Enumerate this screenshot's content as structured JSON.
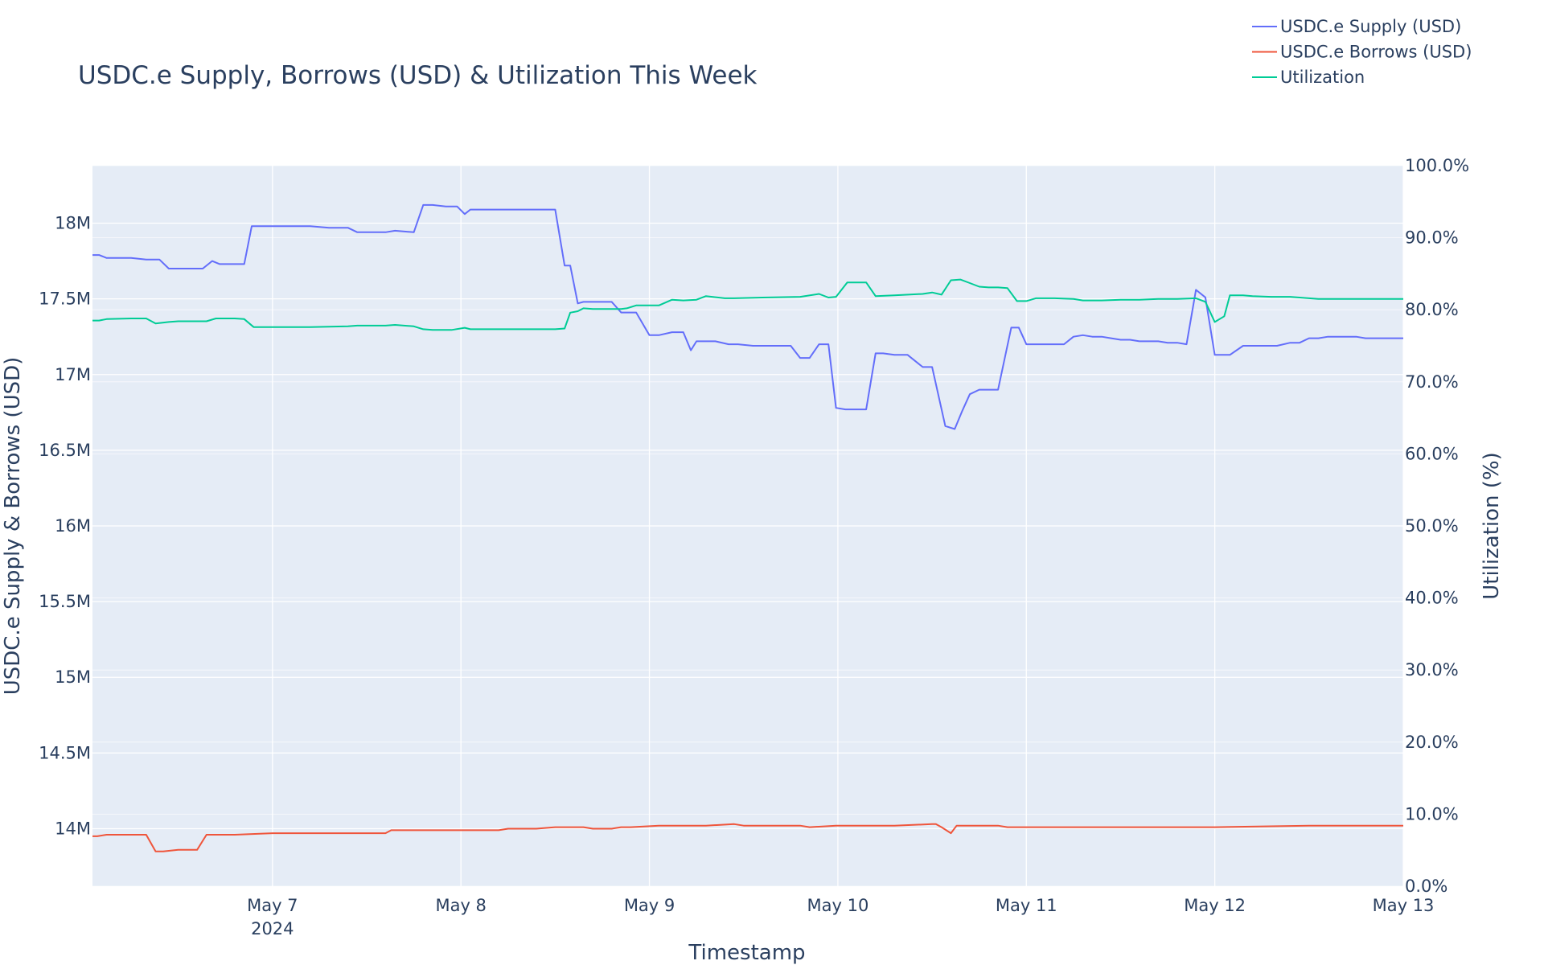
{
  "chart_data": {
    "type": "line",
    "title": "USDC.e Supply, Borrows (USD) & Utilization This Week",
    "xlabel": "Timestamp",
    "ylabel": "USDC.e Supply & Borrows (USD)",
    "y2label": "Utilization (%)",
    "x_tick_labels": [
      "May 7",
      "May 8",
      "May 9",
      "May 10",
      "May 11",
      "May 12",
      "May 13"
    ],
    "x_year_label": "2024",
    "xlim": [
      6.045,
      13.0
    ],
    "ylim": [
      13.62,
      18.38
    ],
    "y_tick_values": [
      14,
      14.5,
      15,
      15.5,
      16,
      16.5,
      17,
      17.5,
      18
    ],
    "y_tick_labels": [
      "14M",
      "14.5M",
      "15M",
      "15.5M",
      "16M",
      "16.5M",
      "17M",
      "17.5M",
      "18M"
    ],
    "y_unit": "millions USD",
    "y2lim": [
      0,
      100
    ],
    "y2_tick_values": [
      0,
      10,
      20,
      30,
      40,
      50,
      60,
      70,
      80,
      90,
      100
    ],
    "y2_tick_labels": [
      "0.0%",
      "10.0%",
      "20.0%",
      "30.0%",
      "40.0%",
      "50.0%",
      "60.0%",
      "70.0%",
      "80.0%",
      "90.0%",
      "100.0%"
    ],
    "x_unit": "day of May 2024",
    "grid": true,
    "legend_position": "top-right",
    "plot_bg": "#e5ecf6",
    "series": [
      {
        "name": "USDC.e Supply (USD)",
        "axis": "left",
        "color": "#636efa",
        "x": [
          6.045,
          6.08,
          6.12,
          6.25,
          6.33,
          6.4,
          6.45,
          6.55,
          6.63,
          6.68,
          6.72,
          6.85,
          6.89,
          6.93,
          7.1,
          7.2,
          7.3,
          7.4,
          7.45,
          7.55,
          7.6,
          7.65,
          7.75,
          7.8,
          7.85,
          7.92,
          7.98,
          8.02,
          8.05,
          8.1,
          8.2,
          8.3,
          8.4,
          8.5,
          8.55,
          8.58,
          8.62,
          8.65,
          8.7,
          8.74,
          8.8,
          8.85,
          8.88,
          8.93,
          9.0,
          9.05,
          9.12,
          9.18,
          9.22,
          9.25,
          9.3,
          9.35,
          9.42,
          9.47,
          9.55,
          9.65,
          9.75,
          9.8,
          9.85,
          9.9,
          9.95,
          9.99,
          10.04,
          10.08,
          10.15,
          10.2,
          10.24,
          10.3,
          10.37,
          10.45,
          10.5,
          10.57,
          10.62,
          10.66,
          10.7,
          10.75,
          10.8,
          10.85,
          10.92,
          10.96,
          11.0,
          11.05,
          11.12,
          11.2,
          11.25,
          11.3,
          11.35,
          11.4,
          11.45,
          11.5,
          11.55,
          11.6,
          11.65,
          11.7,
          11.75,
          11.8,
          11.85,
          11.9,
          11.95,
          12.0,
          12.04,
          12.08,
          12.15,
          12.2,
          12.27,
          12.33,
          12.4,
          12.45,
          12.5,
          12.55,
          12.6,
          12.65,
          12.75,
          12.8,
          12.85,
          12.9,
          13.0
        ],
        "y": [
          17.79,
          17.79,
          17.77,
          17.77,
          17.76,
          17.76,
          17.7,
          17.7,
          17.7,
          17.75,
          17.73,
          17.73,
          17.98,
          17.98,
          17.98,
          17.98,
          17.97,
          17.97,
          17.94,
          17.94,
          17.94,
          17.95,
          17.94,
          18.12,
          18.12,
          18.11,
          18.11,
          18.06,
          18.09,
          18.09,
          18.09,
          18.09,
          18.09,
          18.09,
          17.72,
          17.72,
          17.47,
          17.48,
          17.48,
          17.48,
          17.48,
          17.41,
          17.41,
          17.41,
          17.26,
          17.26,
          17.28,
          17.28,
          17.16,
          17.22,
          17.22,
          17.22,
          17.2,
          17.2,
          17.19,
          17.19,
          17.19,
          17.11,
          17.11,
          17.2,
          17.2,
          16.78,
          16.77,
          16.77,
          16.77,
          17.14,
          17.14,
          17.13,
          17.13,
          17.05,
          17.05,
          16.66,
          16.64,
          16.76,
          16.87,
          16.9,
          16.9,
          16.9,
          17.31,
          17.31,
          17.2,
          17.2,
          17.2,
          17.2,
          17.25,
          17.26,
          17.25,
          17.25,
          17.24,
          17.23,
          17.23,
          17.22,
          17.22,
          17.22,
          17.21,
          17.21,
          17.2,
          17.56,
          17.51,
          17.13,
          17.13,
          17.13,
          17.19,
          17.19,
          17.19,
          17.19,
          17.21,
          17.21,
          17.24,
          17.24,
          17.25,
          17.25,
          17.25,
          17.24,
          17.24,
          17.24,
          17.24
        ]
      },
      {
        "name": "USDC.e Borrows (USD)",
        "axis": "left",
        "color": "#ef553b",
        "x": [
          6.045,
          6.07,
          6.12,
          6.2,
          6.3,
          6.33,
          6.38,
          6.42,
          6.5,
          6.6,
          6.65,
          6.7,
          6.8,
          7.0,
          7.2,
          7.4,
          7.6,
          7.63,
          7.8,
          8.0,
          8.2,
          8.25,
          8.4,
          8.5,
          8.6,
          8.65,
          8.7,
          8.8,
          8.85,
          8.9,
          9.05,
          9.3,
          9.45,
          9.5,
          9.6,
          9.8,
          9.85,
          9.99,
          10.0,
          10.3,
          10.5,
          10.52,
          10.55,
          10.6,
          10.63,
          10.68,
          10.75,
          10.85,
          10.9,
          11.0,
          11.3,
          11.8,
          12.0,
          12.5,
          12.7,
          12.9,
          13.0
        ],
        "y": [
          13.95,
          13.95,
          13.96,
          13.96,
          13.96,
          13.96,
          13.85,
          13.85,
          13.86,
          13.86,
          13.96,
          13.96,
          13.96,
          13.97,
          13.97,
          13.97,
          13.97,
          13.99,
          13.99,
          13.99,
          13.99,
          14.0,
          14.0,
          14.01,
          14.01,
          14.01,
          14.0,
          14.0,
          14.01,
          14.01,
          14.02,
          14.02,
          14.03,
          14.02,
          14.02,
          14.02,
          14.01,
          14.02,
          14.02,
          14.02,
          14.03,
          14.03,
          14.01,
          13.97,
          14.02,
          14.02,
          14.02,
          14.02,
          14.01,
          14.01,
          14.01,
          14.01,
          14.01,
          14.02,
          14.02,
          14.02,
          14.02
        ]
      },
      {
        "name": "Utilization",
        "axis": "right",
        "color": "#00cc96",
        "x": [
          6.045,
          6.08,
          6.12,
          6.25,
          6.33,
          6.38,
          6.45,
          6.5,
          6.6,
          6.65,
          6.7,
          6.8,
          6.85,
          6.9,
          7.0,
          7.2,
          7.4,
          7.45,
          7.6,
          7.65,
          7.75,
          7.8,
          7.85,
          7.95,
          8.02,
          8.05,
          8.1,
          8.3,
          8.5,
          8.55,
          8.58,
          8.62,
          8.65,
          8.7,
          8.8,
          8.85,
          8.88,
          8.93,
          9.0,
          9.05,
          9.12,
          9.18,
          9.25,
          9.3,
          9.4,
          9.45,
          9.6,
          9.8,
          9.9,
          9.95,
          9.99,
          10.05,
          10.15,
          10.2,
          10.3,
          10.45,
          10.5,
          10.55,
          10.6,
          10.65,
          10.7,
          10.75,
          10.8,
          10.85,
          10.9,
          10.95,
          11.0,
          11.05,
          11.15,
          11.25,
          11.3,
          11.4,
          11.5,
          11.6,
          11.7,
          11.8,
          11.9,
          11.95,
          12.0,
          12.05,
          12.08,
          12.15,
          12.2,
          12.3,
          12.4,
          12.5,
          12.55,
          12.6,
          12.7,
          12.8,
          12.9,
          13.0
        ],
        "y": [
          78.5,
          78.5,
          78.7,
          78.8,
          78.8,
          78.1,
          78.3,
          78.4,
          78.4,
          78.4,
          78.8,
          78.8,
          78.7,
          77.6,
          77.6,
          77.6,
          77.7,
          77.8,
          77.8,
          77.9,
          77.7,
          77.3,
          77.2,
          77.2,
          77.5,
          77.3,
          77.3,
          77.3,
          77.3,
          77.4,
          79.6,
          79.8,
          80.2,
          80.1,
          80.1,
          80.1,
          80.2,
          80.6,
          80.6,
          80.6,
          81.4,
          81.3,
          81.4,
          81.9,
          81.6,
          81.6,
          81.7,
          81.8,
          82.2,
          81.7,
          81.8,
          83.8,
          83.8,
          81.9,
          82.0,
          82.2,
          82.4,
          82.1,
          84.1,
          84.2,
          83.7,
          83.2,
          83.1,
          83.1,
          83.0,
          81.2,
          81.2,
          81.6,
          81.6,
          81.5,
          81.3,
          81.3,
          81.4,
          81.4,
          81.5,
          81.5,
          81.6,
          81.1,
          78.3,
          79.1,
          82.0,
          82.0,
          81.9,
          81.8,
          81.8,
          81.6,
          81.5,
          81.5,
          81.5,
          81.5,
          81.5,
          81.5
        ]
      }
    ]
  }
}
